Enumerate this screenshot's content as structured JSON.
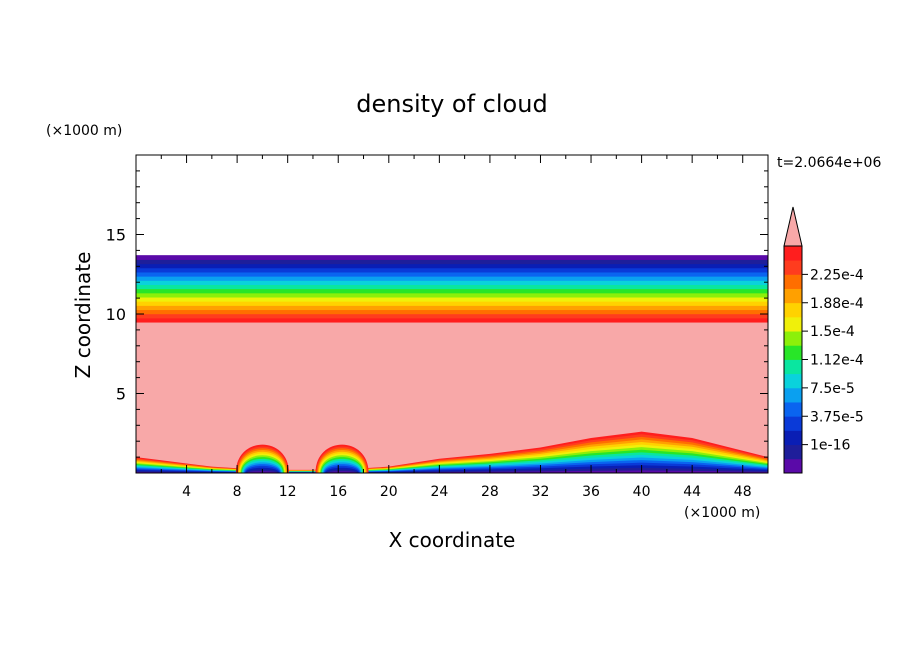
{
  "chart_data": {
    "type": "heatmap",
    "title": "density of cloud",
    "time_label": "t=2.0664e+06",
    "xlabel": "X coordinate",
    "ylabel": "Z coordinate",
    "x_unit": "(×1000 m)",
    "y_unit": "(×1000 m)",
    "xlim": [
      0,
      50
    ],
    "ylim": [
      0,
      20
    ],
    "x_ticks": [
      4,
      8,
      12,
      16,
      20,
      24,
      28,
      32,
      36,
      40,
      44,
      48
    ],
    "y_ticks": [
      5,
      10,
      15
    ],
    "colorbar": {
      "labels": [
        "2.25e-4",
        "1.88e-4",
        "1.5e-4",
        "1.12e-4",
        "7.5e-5",
        "3.75e-5",
        "1e-16"
      ],
      "overflow_color": "#f8a8a8",
      "colors": [
        "#5a0aa8",
        "#1e1e9a",
        "#0a1eb4",
        "#0a3ad8",
        "#0a64f0",
        "#0aa0f0",
        "#0ad2dc",
        "#0ae6a0",
        "#28e628",
        "#8cf00a",
        "#f0f00a",
        "#ffd200",
        "#ffa000",
        "#ff6e00",
        "#ff3c1e",
        "#ff1e1e"
      ]
    },
    "overflow_region": {
      "z_top": 9.5
    },
    "upper_layer": {
      "z_bottom": 9.5,
      "z_top": 13.7
    },
    "surface_profile": {
      "x": [
        0,
        2,
        4,
        6,
        8,
        12,
        14,
        18,
        20,
        24,
        28,
        32,
        36,
        40,
        44,
        48,
        50
      ],
      "z": [
        1.0,
        0.8,
        0.6,
        0.4,
        0.3,
        0.2,
        0.2,
        0.3,
        0.4,
        0.9,
        1.2,
        1.6,
        2.2,
        2.6,
        2.2,
        1.4,
        1.0
      ]
    },
    "cloud_cells": [
      {
        "x_center": 10.0,
        "z_top": 1.9
      },
      {
        "x_center": 16.3,
        "z_top": 1.9
      }
    ]
  }
}
